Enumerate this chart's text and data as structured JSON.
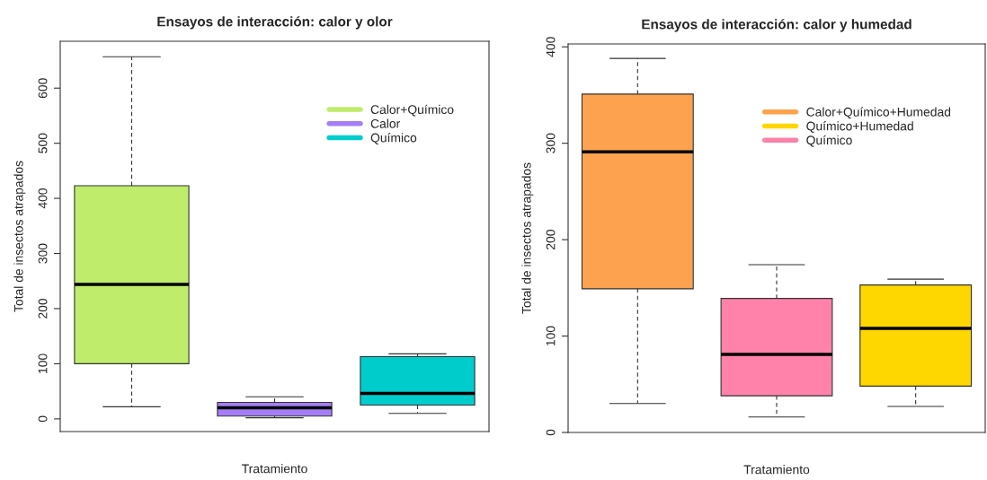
{
  "chart_data": [
    {
      "type": "box",
      "title": "Ensayos de interacción: calor y olor",
      "xlabel": "Tratamiento",
      "ylabel": "Total de insectos atrapados",
      "categories": [
        null,
        null,
        null
      ],
      "ylim": [
        -23,
        685
      ],
      "yticks": [
        0,
        100,
        200,
        300,
        400,
        500,
        600
      ],
      "legend": "top right",
      "grid": false,
      "tick_labels": "y",
      "series": [
        {
          "name": "Calor+Químico",
          "color": "#bfec6a",
          "boxes": [
            {
              "low": 22,
              "q1": 100,
              "median": 244,
              "q3": 423,
              "high": 657
            },
            null,
            null
          ]
        },
        {
          "name": "Calor",
          "color": "#a47ef7",
          "boxes": [
            null,
            {
              "low": 2,
              "q1": 5,
              "median": 20,
              "q3": 30,
              "high": 40
            },
            null
          ]
        },
        {
          "name": "Químico",
          "color": "#00cccc",
          "boxes": [
            null,
            null,
            {
              "low": 10,
              "q1": 25,
              "median": 46,
              "q3": 113,
              "high": 118
            }
          ]
        }
      ]
    },
    {
      "type": "box",
      "title": "Ensayos de interacción: calor y humedad",
      "xlabel": "Tratamiento",
      "ylabel": "Total de insectos atrapados",
      "categories": [
        null,
        null,
        null
      ],
      "ylim": [
        0,
        403
      ],
      "yticks": [
        0,
        100,
        200,
        300,
        400
      ],
      "legend": "top right",
      "grid": false,
      "tick_labels": "y",
      "series": [
        {
          "name": "Calor+Químico+Humedad",
          "color": "#fda350",
          "boxes": [
            {
              "low": 30,
              "q1": 149,
              "median": 291,
              "q3": 351,
              "high": 388
            },
            null,
            null
          ]
        },
        {
          "name": "Químico+Humedad",
          "color": "#fed700",
          "boxes": [
            null,
            null,
            {
              "low": 27,
              "q1": 48,
              "median": 108,
              "q3": 153,
              "high": 159
            }
          ]
        },
        {
          "name": "Químico",
          "color": "#fe82aa",
          "boxes": [
            null,
            {
              "low": 16,
              "q1": 38,
              "median": 81,
              "q3": 139,
              "high": 174
            },
            null
          ]
        }
      ]
    }
  ]
}
